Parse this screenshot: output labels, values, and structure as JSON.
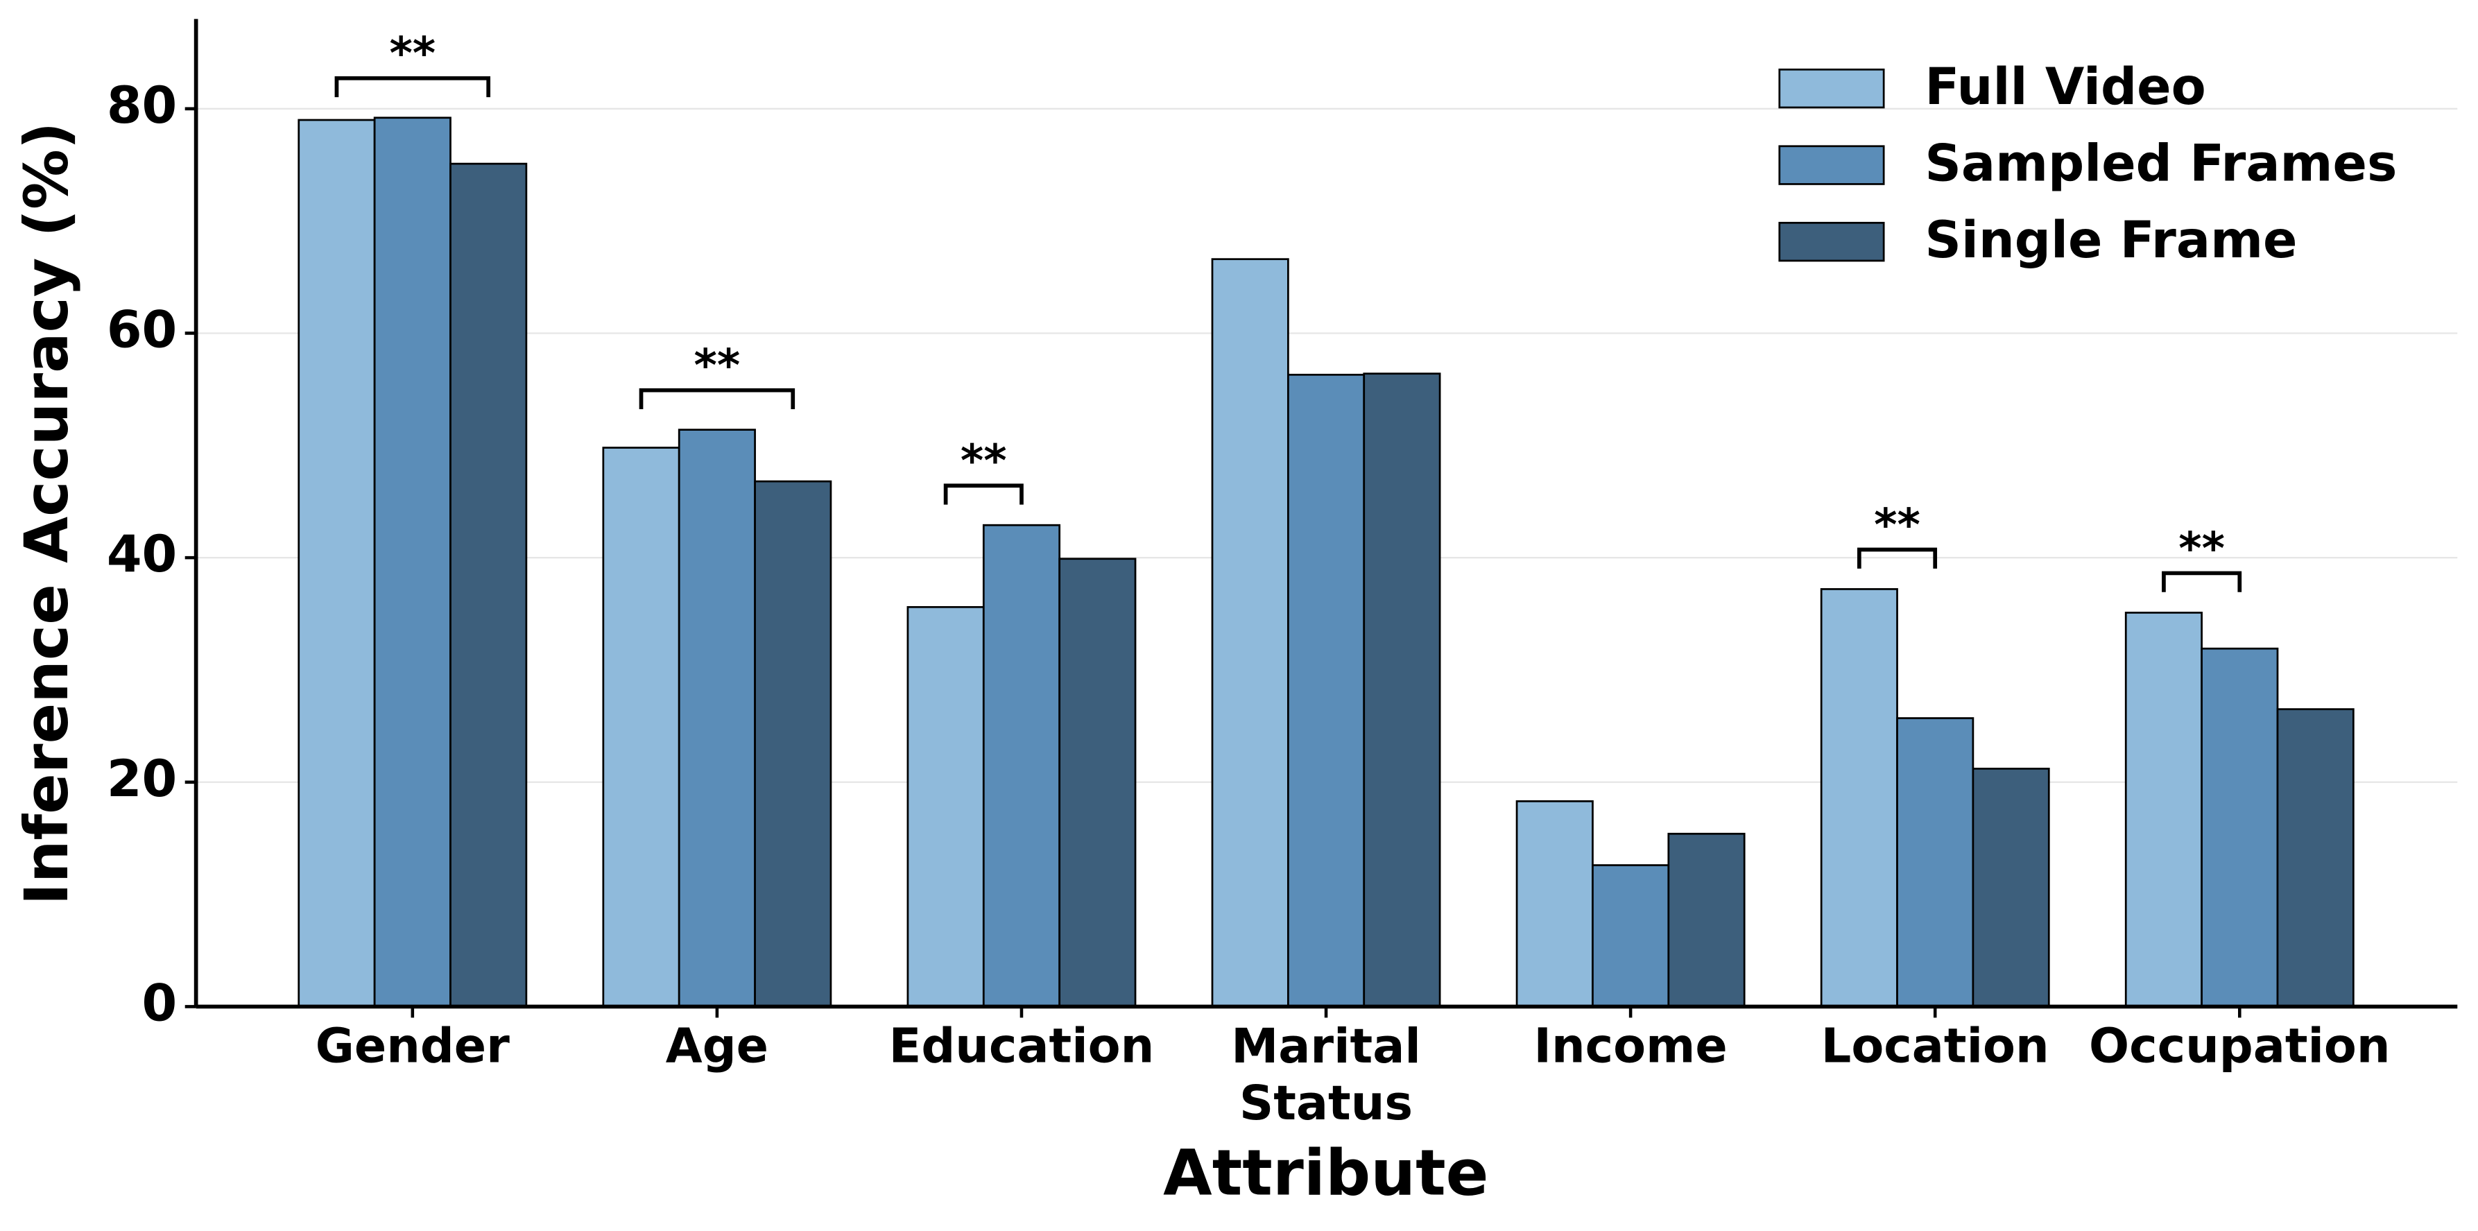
{
  "chart_data": {
    "type": "bar",
    "x_label": "Attribute",
    "y_label": "Inference Accuracy (%)",
    "categories": [
      "Gender",
      "Age",
      "Education",
      "Marital\nStatus",
      "Income",
      "Location",
      "Occupation"
    ],
    "series": [
      {
        "name": "Full Video",
        "color": "#8fbadb",
        "values": [
          79.0,
          49.8,
          35.6,
          66.6,
          18.3,
          37.2,
          35.1
        ]
      },
      {
        "name": "Sampled Frames",
        "color": "#5b8db8",
        "values": [
          79.2,
          51.4,
          42.9,
          56.3,
          12.6,
          25.7,
          31.9
        ]
      },
      {
        "name": "Single Frame",
        "color": "#3d5f7c",
        "values": [
          75.1,
          46.8,
          39.9,
          56.4,
          15.4,
          21.2,
          26.5
        ]
      }
    ],
    "ylim": [
      0,
      88
    ],
    "yticks": [
      0,
      20,
      40,
      60,
      80
    ],
    "grid": true,
    "legend": "upper right",
    "annotations": [
      {
        "text": "**",
        "category": "Gender",
        "between": [
          "Full Video",
          "Single Frame"
        ]
      },
      {
        "text": "**",
        "category": "Age",
        "between": [
          "Full Video",
          "Single Frame"
        ]
      },
      {
        "text": "**",
        "category": "Education",
        "between": [
          "Full Video",
          "Sampled Frames"
        ]
      },
      {
        "text": "**",
        "category": "Location",
        "between": [
          "Full Video",
          "Sampled Frames"
        ]
      },
      {
        "text": "**",
        "category": "Occupation",
        "between": [
          "Full Video",
          "Sampled Frames"
        ]
      }
    ]
  }
}
